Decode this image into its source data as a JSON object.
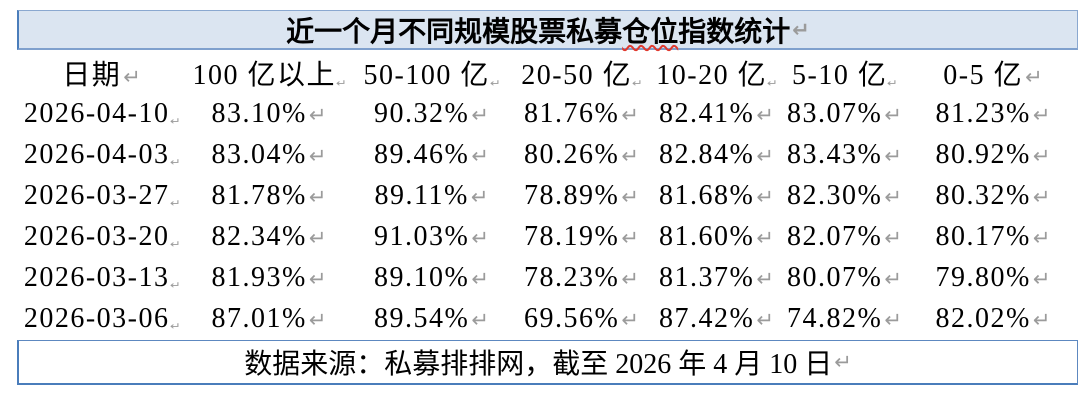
{
  "title": {
    "before": "近一个月不同规模股票私募",
    "flagged": "仓位",
    "after": "指数统计"
  },
  "table": {
    "columns": [
      "日期",
      "100 亿以上",
      "50-100 亿",
      "20-50 亿",
      "10-20 亿",
      "5-10 亿",
      "0-5 亿"
    ],
    "rows": [
      [
        "2026-04-10",
        "83.10%",
        "90.32%",
        "81.76%",
        "82.41%",
        "83.07%",
        "81.23%"
      ],
      [
        "2026-04-03",
        "83.04%",
        "89.46%",
        "80.26%",
        "82.84%",
        "83.43%",
        "80.92%"
      ],
      [
        "2026-03-27",
        "81.78%",
        "89.11%",
        "78.89%",
        "81.68%",
        "82.30%",
        "80.32%"
      ],
      [
        "2026-03-20",
        "82.34%",
        "91.03%",
        "78.19%",
        "81.60%",
        "82.07%",
        "80.17%"
      ],
      [
        "2026-03-13",
        "81.93%",
        "89.10%",
        "78.23%",
        "81.37%",
        "80.07%",
        "79.80%"
      ],
      [
        "2026-03-06",
        "87.01%",
        "89.54%",
        "69.56%",
        "87.42%",
        "74.82%",
        "82.02%"
      ]
    ]
  },
  "footer": {
    "text": "数据来源：私募排排网，截至 2026 年 4 月 10 日"
  },
  "formatting": {
    "end_of_cell_mark": "↵"
  },
  "colors": {
    "title_fill": "#dbe5f1",
    "border_blue": "#5d88c0",
    "border_blue_dark": "#4a7dbb",
    "mark_gray": "#9b9b9b",
    "spellcheck_red": "#e0392e",
    "text": "#000000"
  }
}
